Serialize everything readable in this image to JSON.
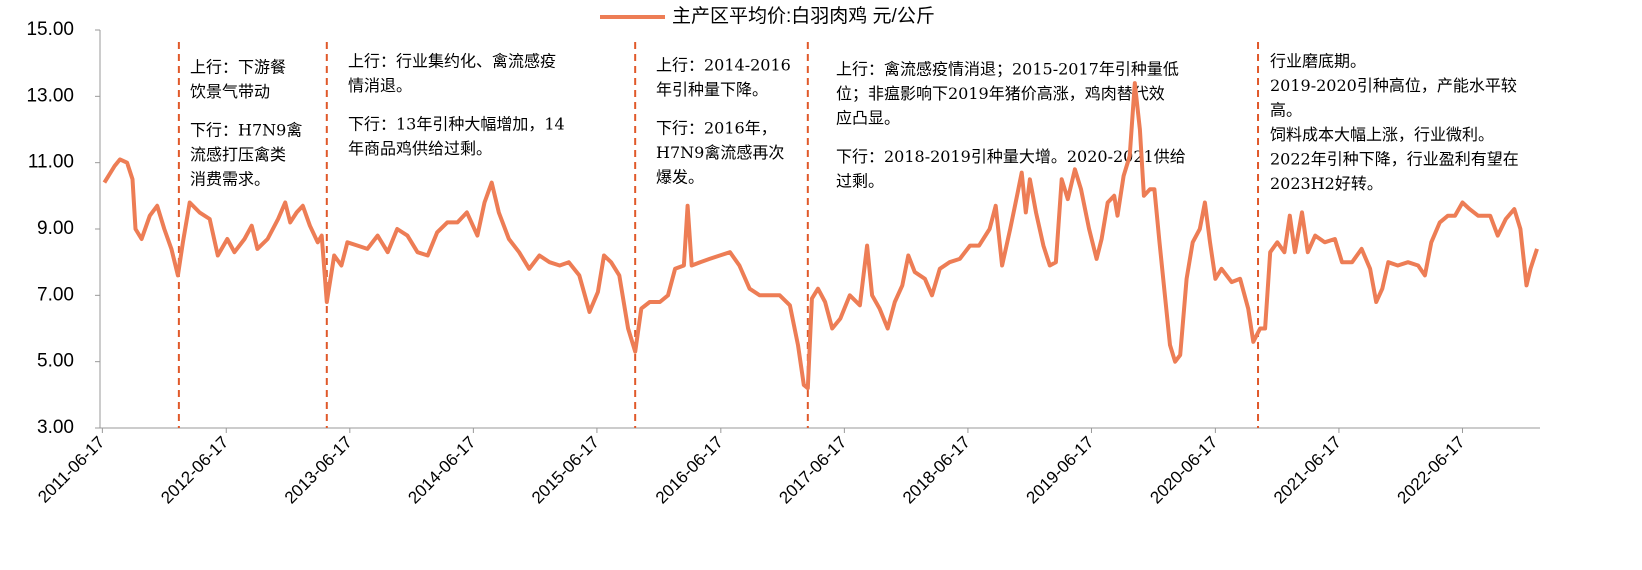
{
  "chart_data": {
    "type": "line",
    "legend_position": "top",
    "series": [
      {
        "name": "主产区平均价:白羽肉鸡 元/公斤",
        "color": "#ED7D55",
        "x": [
          "2011-06-23",
          "2011-07-23",
          "2011-08-08",
          "2011-08-29",
          "2011-09-14",
          "2011-09-23",
          "2011-10-11",
          "2011-11-04",
          "2011-11-26",
          "2011-12-17",
          "2012-01-07",
          "2012-01-26",
          "2012-02-10",
          "2012-03-01",
          "2012-03-30",
          "2012-04-29",
          "2012-05-23",
          "2012-06-20",
          "2012-07-11",
          "2012-08-10",
          "2012-08-31",
          "2012-09-17",
          "2012-10-17",
          "2012-11-17",
          "2012-12-08",
          "2012-12-23",
          "2013-01-11",
          "2013-01-29",
          "2013-02-19",
          "2013-03-14",
          "2013-03-26",
          "2013-04-10",
          "2013-05-02",
          "2013-05-23",
          "2013-06-10",
          "2013-07-10",
          "2013-08-08",
          "2013-09-07",
          "2013-10-07",
          "2013-11-04",
          "2013-12-04",
          "2014-01-03",
          "2014-02-02",
          "2014-03-02",
          "2014-04-01",
          "2014-05-01",
          "2014-05-29",
          "2014-06-29",
          "2014-07-20",
          "2014-08-10",
          "2014-08-31",
          "2014-09-30",
          "2014-10-30",
          "2014-11-29",
          "2014-12-29",
          "2015-01-28",
          "2015-02-27",
          "2015-03-26",
          "2015-04-26",
          "2015-05-26",
          "2015-06-20",
          "2015-07-08",
          "2015-07-29",
          "2015-08-22",
          "2015-09-17",
          "2015-10-08",
          "2015-10-26",
          "2015-11-20",
          "2015-12-20",
          "2016-01-13",
          "2016-02-03",
          "2016-02-29",
          "2016-03-11",
          "2016-03-23",
          "2016-04-17",
          "2016-05-15",
          "2016-06-14",
          "2016-07-14",
          "2016-08-11",
          "2016-09-10",
          "2016-10-10",
          "2016-11-09",
          "2016-12-08",
          "2017-01-07",
          "2017-01-31",
          "2017-02-17",
          "2017-03-01",
          "2017-03-13",
          "2017-03-31",
          "2017-04-21",
          "2017-05-12",
          "2017-06-05",
          "2017-07-03",
          "2017-08-02",
          "2017-08-23",
          "2017-09-07",
          "2017-09-29",
          "2017-10-23",
          "2017-11-13",
          "2017-12-05",
          "2017-12-23",
          "2018-01-11",
          "2018-02-10",
          "2018-03-03",
          "2018-03-26",
          "2018-04-24",
          "2018-05-24",
          "2018-06-23",
          "2018-07-20",
          "2018-08-20",
          "2018-09-07",
          "2018-09-26",
          "2018-10-20",
          "2018-11-11",
          "2018-11-23",
          "2018-12-05",
          "2018-12-17",
          "2019-01-04",
          "2019-01-26",
          "2019-02-14",
          "2019-03-04",
          "2019-03-21",
          "2019-04-08",
          "2019-04-29",
          "2019-05-17",
          "2019-06-10",
          "2019-07-02",
          "2019-07-17",
          "2019-08-04",
          "2019-08-23",
          "2019-09-02",
          "2019-09-20",
          "2019-10-08",
          "2019-10-23",
          "2019-11-07",
          "2019-11-19",
          "2019-12-07",
          "2019-12-20",
          "2020-01-04",
          "2020-01-20",
          "2020-02-04",
          "2020-02-19",
          "2020-03-05",
          "2020-03-24",
          "2020-04-11",
          "2020-05-02",
          "2020-05-17",
          "2020-06-01",
          "2020-06-17",
          "2020-07-05",
          "2020-08-04",
          "2020-08-29",
          "2020-09-22",
          "2020-10-07",
          "2020-10-27",
          "2020-11-11",
          "2020-11-26",
          "2020-12-17",
          "2021-01-07",
          "2021-01-23",
          "2021-02-07",
          "2021-02-28",
          "2021-03-17",
          "2021-04-08",
          "2021-05-06",
          "2021-06-05",
          "2021-06-26",
          "2021-07-26",
          "2021-08-23",
          "2021-09-17",
          "2021-10-05",
          "2021-10-23",
          "2021-11-10",
          "2021-12-08",
          "2022-01-07",
          "2022-02-06",
          "2022-02-26",
          "2022-03-17",
          "2022-04-11",
          "2022-05-05",
          "2022-05-26",
          "2022-06-17",
          "2022-07-08",
          "2022-08-02",
          "2022-09-07",
          "2022-09-29",
          "2022-10-23",
          "2022-11-17",
          "2022-12-05",
          "2022-12-23",
          "2023-01-04",
          "2023-01-23"
        ],
        "values": [
          10.4,
          10.9,
          11.1,
          11.0,
          10.5,
          9.0,
          8.7,
          9.4,
          9.7,
          9.0,
          8.4,
          7.6,
          8.6,
          9.8,
          9.5,
          9.3,
          8.2,
          8.7,
          8.3,
          8.7,
          9.1,
          8.4,
          8.7,
          9.3,
          9.8,
          9.2,
          9.5,
          9.7,
          9.1,
          8.6,
          8.8,
          6.8,
          8.2,
          7.9,
          8.6,
          8.5,
          8.4,
          8.8,
          8.3,
          9.0,
          8.8,
          8.3,
          8.2,
          8.9,
          9.2,
          9.2,
          9.5,
          8.8,
          9.8,
          10.4,
          9.5,
          8.7,
          8.3,
          7.8,
          8.2,
          8.0,
          7.9,
          8.0,
          7.6,
          6.5,
          7.1,
          8.2,
          8.0,
          7.6,
          6.0,
          5.3,
          6.6,
          6.8,
          6.8,
          7.0,
          7.8,
          7.9,
          9.7,
          7.9,
          8.0,
          8.1,
          8.2,
          8.3,
          7.9,
          7.2,
          7.0,
          7.0,
          7.0,
          6.7,
          5.5,
          4.3,
          4.2,
          6.9,
          7.2,
          6.8,
          6.0,
          6.3,
          7.0,
          6.7,
          8.5,
          7.0,
          6.6,
          6.0,
          6.8,
          7.3,
          8.2,
          7.7,
          7.5,
          7.0,
          7.8,
          8.0,
          8.1,
          8.5,
          8.5,
          9.0,
          9.7,
          7.9,
          9.0,
          10.1,
          10.7,
          9.5,
          10.5,
          9.5,
          8.5,
          7.9,
          8.0,
          10.5,
          9.9,
          10.8,
          10.2,
          9.0,
          8.1,
          8.7,
          9.8,
          10.0,
          9.4,
          10.6,
          11.2,
          13.4,
          12.0,
          10.0,
          10.2,
          10.2,
          8.6,
          7.0,
          5.5,
          5.0,
          5.2,
          7.5,
          8.6,
          9.0,
          9.8,
          8.6,
          7.5,
          7.8,
          7.4,
          7.5,
          6.6,
          5.6,
          6.0,
          6.0,
          8.3,
          8.6,
          8.3,
          9.4,
          8.3,
          9.5,
          8.3,
          8.8,
          8.6,
          8.7,
          8.0,
          8.0,
          8.4,
          7.8,
          6.8,
          7.2,
          8.0,
          7.9,
          8.0,
          7.9,
          7.6,
          8.6,
          9.2,
          9.4,
          9.4,
          9.8,
          9.6,
          9.4,
          9.4,
          8.8,
          9.3,
          9.6,
          9.0,
          7.3,
          7.8,
          8.4
        ]
      }
    ],
    "xlim": [
      "2011-06-10",
      "2023-02-01"
    ],
    "xticks": [
      "2011-06-17",
      "2012-06-17",
      "2013-06-17",
      "2014-06-17",
      "2015-06-17",
      "2016-06-17",
      "2017-06-17",
      "2018-06-17",
      "2019-06-17",
      "2020-06-17",
      "2021-06-17",
      "2022-06-17"
    ],
    "ylim": [
      3,
      15
    ],
    "yticks": [
      {
        "value": 3,
        "label": "3.00"
      },
      {
        "value": 5,
        "label": "5.00"
      },
      {
        "value": 7,
        "label": "7.00"
      },
      {
        "value": 9,
        "label": "9.00"
      },
      {
        "value": 11,
        "label": "11.00"
      },
      {
        "value": 13,
        "label": "13.00"
      },
      {
        "value": 15,
        "label": "15.00"
      }
    ],
    "grid": false,
    "divider_color": "#E0592A",
    "dividers": [
      "2012-01-29",
      "2013-04-10",
      "2015-10-08",
      "2017-03-01",
      "2020-10-21"
    ],
    "annotations": [
      {
        "paragraphs": [
          [
            "上行：下游餐",
            "饮景气带动"
          ],
          [
            "下行：H7N9禽",
            "流感打压禽类",
            "消费需求。"
          ]
        ]
      },
      {
        "paragraphs": [
          [
            "上行：行业集约化、禽流感疫",
            "情消退。"
          ],
          [
            "下行：13年引种大幅增加，14",
            "年商品鸡供给过剩。"
          ]
        ]
      },
      {
        "paragraphs": [
          [
            "上行：2014-2016",
            "年引种量下降。"
          ],
          [
            "下行：2016年，",
            "H7N9禽流感再次",
            "爆发。"
          ]
        ]
      },
      {
        "paragraphs": [
          [
            "上行：禽流感疫情消退；2015-2017年引种量低",
            "位；非瘟影响下2019年猪价高涨，鸡肉替代效",
            "应凸显。"
          ],
          [
            "下行：2018-2019引种量大增。2020-2021供给",
            "过剩。"
          ]
        ]
      },
      {
        "paragraphs": [
          [
            "行业磨底期。",
            "2019-2020引种高位，产能水平较",
            "高。",
            "饲料成本大幅上涨，行业微利。",
            "2022年引种下降，行业盈利有望在",
            "2023H2好转。"
          ]
        ]
      }
    ]
  }
}
